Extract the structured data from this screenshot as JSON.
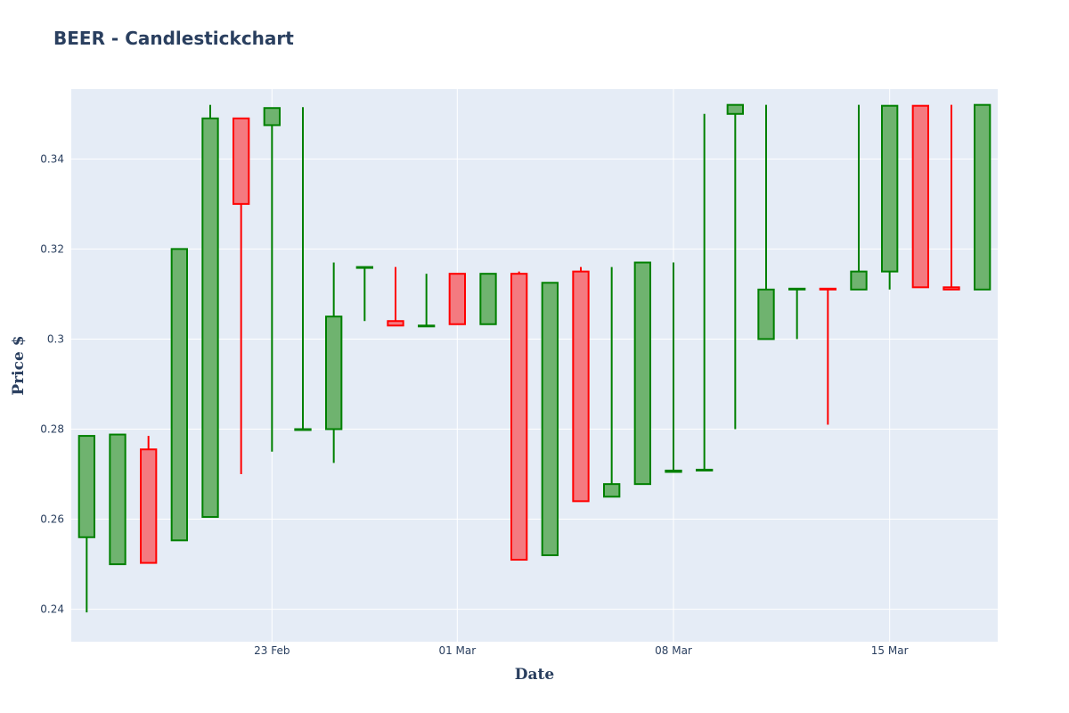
{
  "chart_data": {
    "type": "candlestick",
    "title": "BEER - Candlestickchart",
    "xlabel": "Date",
    "ylabel": "Price $",
    "ylim": [
      0.2328,
      0.3555
    ],
    "xlim": [
      "2021-02-16T12:00",
      "2021-03-18T12:00"
    ],
    "grid": true,
    "x_ticks": [
      {
        "date": "2021-02-23",
        "label": "23 Feb"
      },
      {
        "date": "2021-03-01",
        "label": "01 Mar"
      },
      {
        "date": "2021-03-08",
        "label": "08 Mar"
      },
      {
        "date": "2021-03-15",
        "label": "15 Mar"
      }
    ],
    "y_ticks": [
      {
        "value": 0.24,
        "label": "0.24"
      },
      {
        "value": 0.26,
        "label": "0.26"
      },
      {
        "value": 0.28,
        "label": "0.28"
      },
      {
        "value": 0.3,
        "label": "0.3"
      },
      {
        "value": 0.32,
        "label": "0.32"
      },
      {
        "value": 0.34,
        "label": "0.34"
      }
    ],
    "colors": {
      "increasing_line": "#008000",
      "increasing_fill": "#6fb36f",
      "decreasing_line": "#ff0000",
      "decreasing_fill": "#f47a80",
      "plot_bg": "#e5ecf6",
      "grid": "#ffffff",
      "text": "#2a3f5f"
    },
    "candles": [
      {
        "date": "2021-02-17",
        "open": 0.256,
        "high": 0.2785,
        "low": 0.2393,
        "close": 0.2785
      },
      {
        "date": "2021-02-18",
        "open": 0.25,
        "high": 0.2788,
        "low": 0.25,
        "close": 0.2788
      },
      {
        "date": "2021-02-19",
        "open": 0.2755,
        "high": 0.2785,
        "low": 0.2503,
        "close": 0.2503
      },
      {
        "date": "2021-02-20",
        "open": 0.2553,
        "high": 0.32,
        "low": 0.2553,
        "close": 0.32
      },
      {
        "date": "2021-02-21",
        "open": 0.2605,
        "high": 0.352,
        "low": 0.2605,
        "close": 0.349
      },
      {
        "date": "2021-02-22",
        "open": 0.349,
        "high": 0.349,
        "low": 0.27,
        "close": 0.33
      },
      {
        "date": "2021-02-23",
        "open": 0.3475,
        "high": 0.3513,
        "low": 0.275,
        "close": 0.3513
      },
      {
        "date": "2021-02-24",
        "open": 0.28,
        "high": 0.3515,
        "low": 0.28,
        "close": 0.28
      },
      {
        "date": "2021-02-25",
        "open": 0.28,
        "high": 0.317,
        "low": 0.2725,
        "close": 0.305
      },
      {
        "date": "2021-02-26",
        "open": 0.316,
        "high": 0.316,
        "low": 0.304,
        "close": 0.316
      },
      {
        "date": "2021-02-27",
        "open": 0.304,
        "high": 0.316,
        "low": 0.303,
        "close": 0.303
      },
      {
        "date": "2021-02-28",
        "open": 0.303,
        "high": 0.3145,
        "low": 0.303,
        "close": 0.303
      },
      {
        "date": "2021-03-01",
        "open": 0.3145,
        "high": 0.3145,
        "low": 0.3033,
        "close": 0.3033
      },
      {
        "date": "2021-03-02",
        "open": 0.3033,
        "high": 0.3145,
        "low": 0.3033,
        "close": 0.3145
      },
      {
        "date": "2021-03-03",
        "open": 0.3145,
        "high": 0.315,
        "low": 0.251,
        "close": 0.251
      },
      {
        "date": "2021-03-04",
        "open": 0.252,
        "high": 0.3125,
        "low": 0.252,
        "close": 0.3125
      },
      {
        "date": "2021-03-05",
        "open": 0.315,
        "high": 0.316,
        "low": 0.264,
        "close": 0.264
      },
      {
        "date": "2021-03-06",
        "open": 0.265,
        "high": 0.316,
        "low": 0.265,
        "close": 0.2678
      },
      {
        "date": "2021-03-07",
        "open": 0.2678,
        "high": 0.317,
        "low": 0.2678,
        "close": 0.317
      },
      {
        "date": "2021-03-08",
        "open": 0.2705,
        "high": 0.317,
        "low": 0.2705,
        "close": 0.2708
      },
      {
        "date": "2021-03-09",
        "open": 0.2708,
        "high": 0.35,
        "low": 0.2708,
        "close": 0.271
      },
      {
        "date": "2021-03-10",
        "open": 0.35,
        "high": 0.352,
        "low": 0.28,
        "close": 0.352
      },
      {
        "date": "2021-03-11",
        "open": 0.3,
        "high": 0.352,
        "low": 0.3,
        "close": 0.311
      },
      {
        "date": "2021-03-12",
        "open": 0.311,
        "high": 0.311,
        "low": 0.3,
        "close": 0.3112
      },
      {
        "date": "2021-03-13",
        "open": 0.3112,
        "high": 0.3112,
        "low": 0.281,
        "close": 0.311
      },
      {
        "date": "2021-03-14",
        "open": 0.311,
        "high": 0.352,
        "low": 0.311,
        "close": 0.315
      },
      {
        "date": "2021-03-15",
        "open": 0.315,
        "high": 0.3518,
        "low": 0.311,
        "close": 0.3518
      },
      {
        "date": "2021-03-16",
        "open": 0.3518,
        "high": 0.3518,
        "low": 0.3115,
        "close": 0.3115
      },
      {
        "date": "2021-03-17",
        "open": 0.3115,
        "high": 0.352,
        "low": 0.311,
        "close": 0.311
      },
      {
        "date": "2021-03-18",
        "open": 0.311,
        "high": 0.352,
        "low": 0.311,
        "close": 0.352
      }
    ]
  }
}
